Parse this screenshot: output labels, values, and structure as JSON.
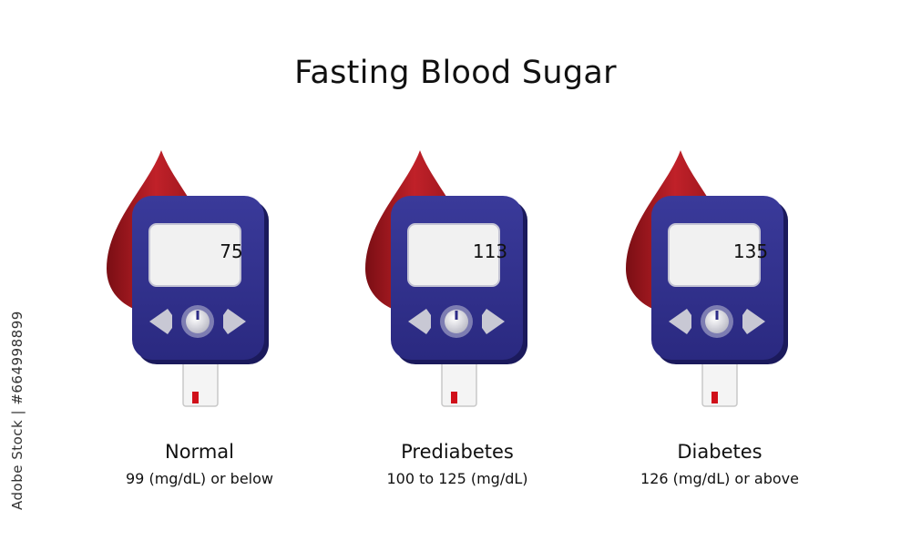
{
  "title": "Fasting Blood Sugar",
  "side_id": "Adobe Stock | #664998899",
  "colors": {
    "device_body": "#2d2c87",
    "device_dark": "#1b1a5c",
    "screen": "#f1f1f1",
    "drop": "#b21b24",
    "strip_tip": "#d0101a"
  },
  "meters": [
    {
      "reading": "75",
      "label": "Normal",
      "range": "99 (mg/dL) or below"
    },
    {
      "reading": "113",
      "label": "Prediabetes",
      "range": "100 to 125 (mg/dL)"
    },
    {
      "reading": "135",
      "label": "Diabetes",
      "range": "126 (mg/dL) or above"
    }
  ]
}
